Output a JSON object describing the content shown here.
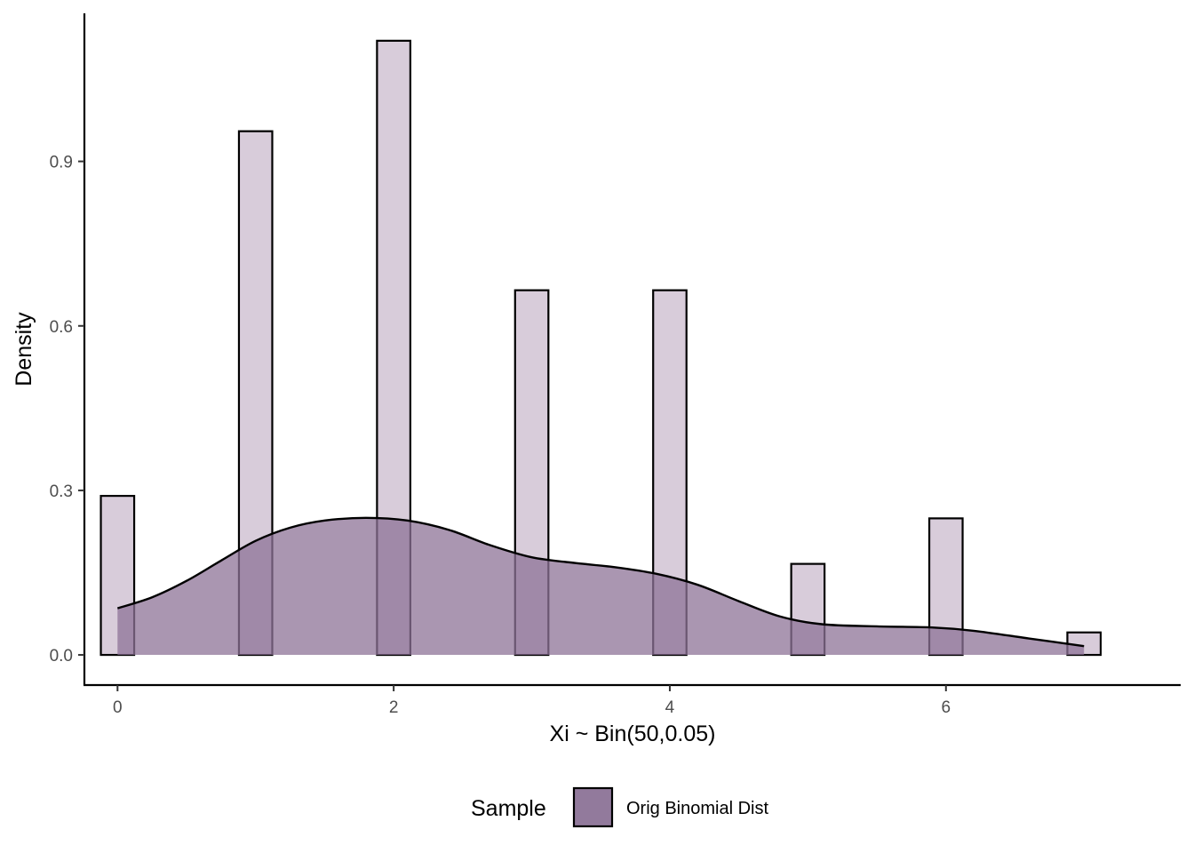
{
  "chart_data": {
    "type": "bar",
    "title": "",
    "xlabel": "Xi ~ Bin(50,0.05)",
    "ylabel": "Density",
    "xlim": [
      -0.24,
      7.7
    ],
    "ylim": [
      -0.055,
      1.17
    ],
    "x_ticks": [
      {
        "value": 0,
        "label": "0"
      },
      {
        "value": 2,
        "label": "2"
      },
      {
        "value": 4,
        "label": "4"
      },
      {
        "value": 6,
        "label": "6"
      }
    ],
    "y_ticks": [
      {
        "value": 0.0,
        "label": "0.0"
      },
      {
        "value": 0.3,
        "label": "0.3"
      },
      {
        "value": 0.6,
        "label": "0.6"
      },
      {
        "value": 0.9,
        "label": "0.9"
      }
    ],
    "histogram": {
      "bin_width": 0.2414,
      "bins": [
        {
          "x": 0,
          "density": 0.29
        },
        {
          "x": 1,
          "density": 0.955
        },
        {
          "x": 2,
          "density": 1.12
        },
        {
          "x": 3,
          "density": 0.665
        },
        {
          "x": 4,
          "density": 0.665
        },
        {
          "x": 5,
          "density": 0.166
        },
        {
          "x": 6,
          "density": 0.249
        },
        {
          "x": 7,
          "density": 0.041
        }
      ],
      "fill": "#d8ccda",
      "stroke": "#000000"
    },
    "density_curve": {
      "points": [
        {
          "x": 0.0,
          "y": 0.085
        },
        {
          "x": 0.25,
          "y": 0.105
        },
        {
          "x": 0.5,
          "y": 0.135
        },
        {
          "x": 0.75,
          "y": 0.172
        },
        {
          "x": 1.0,
          "y": 0.208
        },
        {
          "x": 1.25,
          "y": 0.232
        },
        {
          "x": 1.5,
          "y": 0.245
        },
        {
          "x": 1.8,
          "y": 0.25
        },
        {
          "x": 2.1,
          "y": 0.245
        },
        {
          "x": 2.4,
          "y": 0.228
        },
        {
          "x": 2.7,
          "y": 0.2
        },
        {
          "x": 3.0,
          "y": 0.178
        },
        {
          "x": 3.3,
          "y": 0.168
        },
        {
          "x": 3.6,
          "y": 0.16
        },
        {
          "x": 3.9,
          "y": 0.148
        },
        {
          "x": 4.2,
          "y": 0.128
        },
        {
          "x": 4.5,
          "y": 0.098
        },
        {
          "x": 4.8,
          "y": 0.07
        },
        {
          "x": 5.1,
          "y": 0.056
        },
        {
          "x": 5.5,
          "y": 0.052
        },
        {
          "x": 5.9,
          "y": 0.05
        },
        {
          "x": 6.2,
          "y": 0.044
        },
        {
          "x": 6.6,
          "y": 0.03
        },
        {
          "x": 7.0,
          "y": 0.016
        }
      ],
      "fill": "#8e7397",
      "fill_opacity": 0.75,
      "stroke": "#000000"
    },
    "legend": {
      "position": "bottom",
      "title": "Sample",
      "entries": [
        {
          "name": "Orig Binomial Dist",
          "color": "#927a9c"
        }
      ]
    },
    "grid": false
  }
}
